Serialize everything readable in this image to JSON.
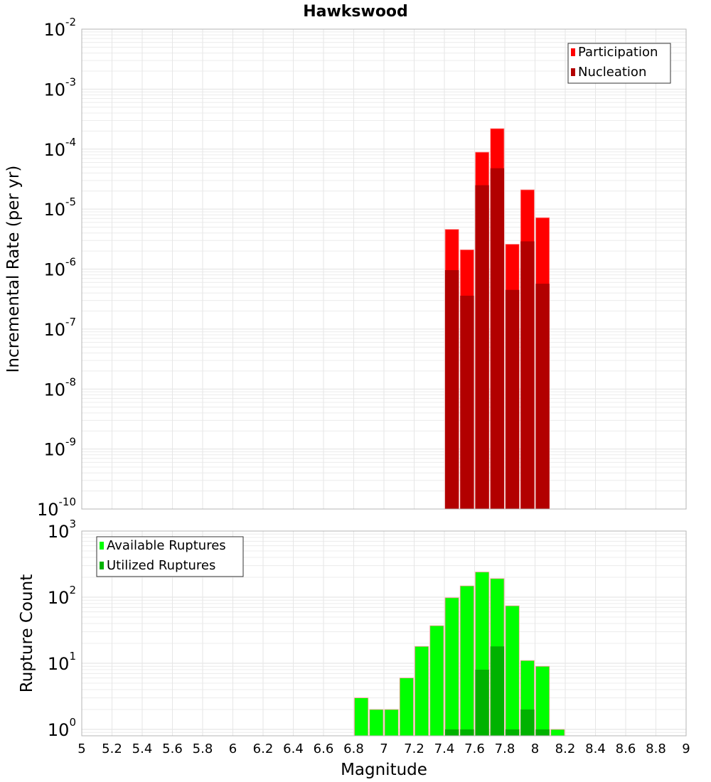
{
  "chart_data": [
    {
      "type": "bar",
      "title": "Hawkswood",
      "xlabel": "",
      "ylabel": "Incremental Rate (per yr)",
      "yscale": "log",
      "ylim": [
        1e-10,
        0.01
      ],
      "xlim": [
        5,
        9
      ],
      "grid": true,
      "legend_position": "top-right",
      "y_tick_labels": [
        {
          "base": "10",
          "exp": "-10",
          "value": 1e-10
        },
        {
          "base": "10",
          "exp": "-9",
          "value": 1e-09
        },
        {
          "base": "10",
          "exp": "-8",
          "value": 1e-08
        },
        {
          "base": "10",
          "exp": "-7",
          "value": 1e-07
        },
        {
          "base": "10",
          "exp": "-6",
          "value": 1e-06
        },
        {
          "base": "10",
          "exp": "-5",
          "value": 1e-05
        },
        {
          "base": "10",
          "exp": "-4",
          "value": 0.0001
        },
        {
          "base": "10",
          "exp": "-3",
          "value": 0.001
        },
        {
          "base": "10",
          "exp": "-2",
          "value": 0.01
        }
      ],
      "x": [
        7.45,
        7.55,
        7.65,
        7.75,
        7.85,
        7.95,
        8.05
      ],
      "series": [
        {
          "name": "Participation",
          "color": "#ff0000",
          "values": [
            4.6e-06,
            2.1e-06,
            8.9e-05,
            0.00022,
            2.6e-06,
            2.1e-05,
            7.2e-06
          ]
        },
        {
          "name": "Nucleation",
          "color": "#b20000",
          "values": [
            9.6e-07,
            3.6e-07,
            2.5e-05,
            4.8e-05,
            4.5e-07,
            2.9e-06,
            5.7e-07
          ]
        }
      ]
    },
    {
      "type": "bar",
      "title": "",
      "xlabel": "Magnitude",
      "ylabel": "Rupture Count",
      "yscale": "log",
      "ylim": [
        0.74,
        1000
      ],
      "xlim": [
        5,
        9
      ],
      "grid": true,
      "legend_position": "top-left",
      "y_tick_labels": [
        {
          "base": "10",
          "exp": "0",
          "value": 1
        },
        {
          "base": "10",
          "exp": "1",
          "value": 10
        },
        {
          "base": "10",
          "exp": "2",
          "value": 100
        },
        {
          "base": "10",
          "exp": "3",
          "value": 1000
        }
      ],
      "x_tick_labels": [
        "5",
        "5.2",
        "5.4",
        "5.6",
        "5.8",
        "6",
        "6.2",
        "6.4",
        "6.6",
        "6.8",
        "7",
        "7.2",
        "7.4",
        "7.6",
        "7.8",
        "8",
        "8.2",
        "8.4",
        "8.6",
        "8.8",
        "9"
      ],
      "x_ticks": [
        5,
        5.2,
        5.4,
        5.6,
        5.8,
        6,
        6.2,
        6.4,
        6.6,
        6.8,
        7,
        7.2,
        7.4,
        7.6,
        7.8,
        8,
        8.2,
        8.4,
        8.6,
        8.8,
        9
      ],
      "x": [
        6.85,
        6.95,
        7.05,
        7.15,
        7.25,
        7.35,
        7.45,
        7.55,
        7.65,
        7.75,
        7.85,
        7.95,
        8.05,
        8.15
      ],
      "series": [
        {
          "name": "Available Ruptures",
          "color": "#00ff00",
          "values": [
            3,
            2,
            2,
            6,
            18,
            37,
            98,
            148,
            240,
            191,
            74,
            11,
            9,
            1
          ]
        },
        {
          "name": "Utilized Ruptures",
          "color": "#00b200",
          "values": [
            0,
            0,
            0,
            0,
            0,
            0,
            1,
            1,
            8,
            18,
            1,
            2,
            1,
            0
          ]
        }
      ]
    }
  ]
}
